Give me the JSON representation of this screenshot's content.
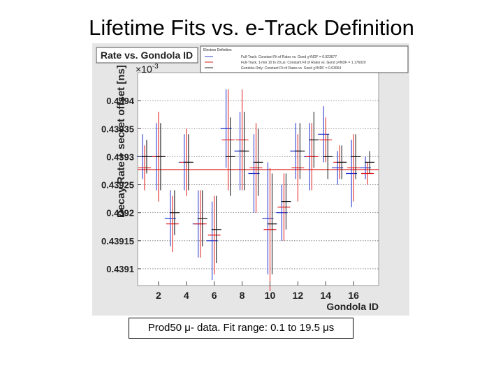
{
  "slide": {
    "title": "Lifetime Fits vs. e-Track Definition",
    "caption": "Prod50 μ- data.   Fit range: 0.1 to 19.5 μs"
  },
  "chart_data": {
    "type": "scatter",
    "title": "Rate vs. Gondola ID",
    "xlabel": "Gondola ID",
    "ylabel": "Decay Rate + secret offset [ns]",
    "y_multiplier": "×10",
    "y_multiplier_exp": "-3",
    "xlim": [
      0.5,
      17.8
    ],
    "ylim": [
      0.43907,
      0.43945
    ],
    "x_ticks": [
      2,
      4,
      6,
      8,
      10,
      12,
      14,
      16
    ],
    "y_tick_labels": [
      "0.4394",
      "0.43935",
      "0.4393",
      "0.43925",
      "0.4392",
      "0.43915",
      "0.4391"
    ],
    "y_tick_values": [
      0.4394,
      0.43935,
      0.4393,
      0.43925,
      0.4392,
      0.43915,
      0.4391
    ],
    "grid": {
      "horizontal": true,
      "vertical": false
    },
    "legend": {
      "position": "top-right",
      "header": "Electron Definition",
      "entries": [
        {
          "label": "Full-Track: Constant Fit of Rates vs. Gond χ²/NDF = 0.923677",
          "color": "#3344cc"
        },
        {
          "label": "Full-Track, 1-min 10 to 20 μs: Constant Fit of Rates vs. Gond χ²/NDF = 1.176020",
          "color": "#cc2222"
        },
        {
          "label": "Gondola-Only: Constant Fit of Rates vs. Gond χ²/NDF = 0.63064",
          "color": "#222222"
        }
      ]
    },
    "fit_line": {
      "y": 0.439277,
      "color": "#e03030"
    },
    "series": [
      {
        "name": "Full-Track",
        "color": "#1a2ecc",
        "x": [
          1,
          2,
          3,
          4,
          5,
          6,
          7,
          8,
          9,
          10,
          11,
          12,
          13,
          14,
          15,
          16,
          17
        ],
        "y": [
          0.4393,
          0.4393,
          0.43919,
          0.43929,
          0.43918,
          0.43915,
          0.43935,
          0.43931,
          0.43927,
          0.43919,
          0.4392,
          0.43931,
          0.4393,
          0.43934,
          0.43928,
          0.43927,
          0.43928
        ],
        "err": [
          4e-05,
          6e-05,
          5e-05,
          5e-05,
          6e-05,
          7e-05,
          7e-05,
          7e-05,
          7e-05,
          0.0001,
          5e-05,
          5e-05,
          6e-05,
          5e-05,
          3e-05,
          6e-05,
          2e-05
        ]
      },
      {
        "name": "Full-Track, 1-min 10 to 20 μs",
        "color": "#e01818",
        "x": [
          1,
          2,
          3,
          4,
          5,
          6,
          7,
          8,
          9,
          10,
          11,
          12,
          13,
          14,
          15,
          16,
          17
        ],
        "y": [
          0.43928,
          0.4393,
          0.43918,
          0.43929,
          0.43918,
          0.43916,
          0.43933,
          0.43933,
          0.43928,
          0.43917,
          0.43921,
          0.43928,
          0.4393,
          0.43933,
          0.43929,
          0.43928,
          0.43927
        ],
        "err": [
          4e-05,
          8e-05,
          5e-05,
          6e-05,
          6e-05,
          7e-05,
          9e-05,
          9e-05,
          8e-05,
          0.00011,
          6e-05,
          6e-05,
          6e-05,
          4e-05,
          3e-05,
          6e-05,
          2e-05
        ]
      },
      {
        "name": "Gondola-Only",
        "color": "#111111",
        "x": [
          1,
          2,
          3,
          4,
          5,
          6,
          7,
          8,
          9,
          10,
          11,
          12,
          13,
          14,
          15,
          16,
          17
        ],
        "y": [
          0.4393,
          0.4393,
          0.4392,
          0.43929,
          0.43919,
          0.43917,
          0.4393,
          0.43931,
          0.43929,
          0.43918,
          0.43922,
          0.43931,
          0.43933,
          0.4393,
          0.43929,
          0.4393,
          0.43929
        ],
        "err": [
          3e-05,
          6e-05,
          4e-05,
          5e-05,
          5e-05,
          6e-05,
          7e-05,
          7e-05,
          6e-05,
          9e-05,
          5e-05,
          5e-05,
          5e-05,
          4e-05,
          3e-05,
          4e-05,
          2e-05
        ]
      }
    ]
  }
}
